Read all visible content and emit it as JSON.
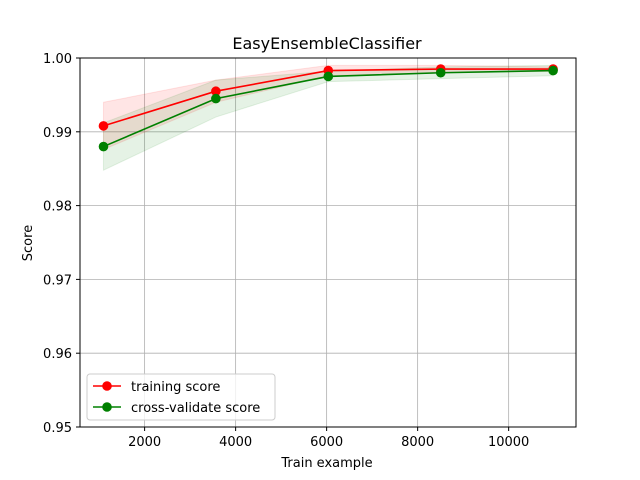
{
  "chart_data": {
    "type": "line",
    "title": "EasyEnsembleClassifier",
    "xlabel": "Train example",
    "ylabel": "Score",
    "xlim": [
      580,
      11480
    ],
    "ylim": [
      0.95,
      1.0
    ],
    "xticks": [
      2000,
      4000,
      6000,
      8000,
      10000
    ],
    "yticks": [
      0.95,
      0.96,
      0.97,
      0.98,
      0.99,
      1.0
    ],
    "xtick_labels": [
      "2000",
      "4000",
      "6000",
      "8000",
      "10000"
    ],
    "ytick_labels": [
      "0.95",
      "0.96",
      "0.97",
      "0.98",
      "0.99",
      "1.00"
    ],
    "grid": true,
    "legend_position": "lower-left",
    "x": [
      1096,
      3566,
      6036,
      8507,
      10977
    ],
    "series": [
      {
        "name": "training score",
        "color": "#ff0000",
        "values": [
          0.9908,
          0.9955,
          0.9983,
          0.9985,
          0.9985
        ],
        "band_lower": [
          0.9876,
          0.994,
          0.9976,
          0.998,
          0.9982
        ],
        "band_upper": [
          0.994,
          0.997,
          0.999,
          0.999,
          0.9988
        ]
      },
      {
        "name": "cross-validate score",
        "color": "#008000",
        "values": [
          0.988,
          0.9945,
          0.9975,
          0.998,
          0.9983
        ],
        "band_lower": [
          0.9848,
          0.992,
          0.9968,
          0.9972,
          0.9976
        ],
        "band_upper": [
          0.9912,
          0.997,
          0.9982,
          0.9988,
          0.999
        ]
      }
    ]
  }
}
